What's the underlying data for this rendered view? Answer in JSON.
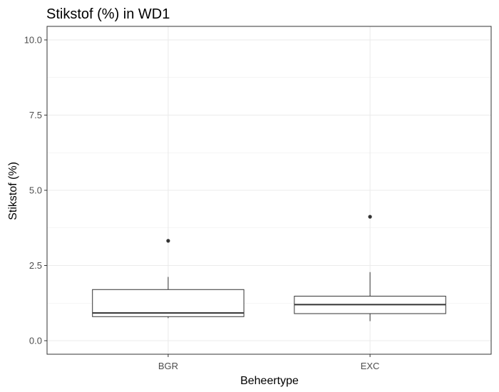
{
  "chart_data": {
    "type": "boxplot",
    "title": "Stikstof (%) in WD1",
    "xlabel": "Beheertype",
    "ylabel": "Stikstof (%)",
    "ylim": [
      -0.45,
      10.45
    ],
    "y_ticks": [
      0.0,
      2.5,
      5.0,
      7.5,
      10.0
    ],
    "y_tick_labels": [
      "0.0",
      "2.5",
      "5.0",
      "7.5",
      "10.0"
    ],
    "grid": true,
    "categories": [
      "BGR",
      "EXC"
    ],
    "boxes": [
      {
        "category": "BGR",
        "lower_whisker": 0.75,
        "q1": 0.8,
        "median": 0.92,
        "q3": 1.7,
        "upper_whisker": 2.12,
        "outliers": [
          3.32
        ]
      },
      {
        "category": "EXC",
        "lower_whisker": 0.65,
        "q1": 0.9,
        "median": 1.2,
        "q3": 1.48,
        "upper_whisker": 2.28,
        "outliers": [
          4.12
        ]
      }
    ],
    "colors": {
      "box_stroke": "#333333",
      "box_fill": "#ffffff",
      "grid": "#ebebeb",
      "panel_border": "#333333",
      "point": "#333333"
    }
  }
}
